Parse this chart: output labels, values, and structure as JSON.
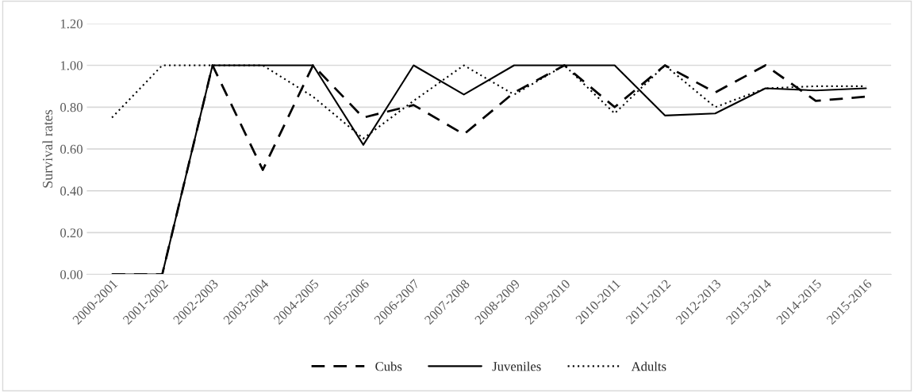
{
  "chart_data": {
    "type": "line",
    "ylabel": "Survival rates",
    "categories": [
      "2000-2001",
      "2001-2002",
      "2002-2003",
      "2003-2004",
      "2004-2005",
      "2005-2006",
      "2006-2007",
      "2007-2008",
      "2008-2009",
      "2009-2010",
      "2010-2011",
      "2011-2012",
      "2012-2013",
      "2013-2014",
      "2014-2015",
      "2015-2016"
    ],
    "series": [
      {
        "name": "Cubs",
        "color": "#000000",
        "line_style": "dashed",
        "values": [
          0,
          0,
          1,
          0.5,
          1,
          0.75,
          0.81,
          0.67,
          0.87,
          1,
          0.8,
          1,
          0.87,
          1,
          0.83,
          0.85
        ]
      },
      {
        "name": "Juveniles",
        "color": "#000000",
        "line_style": "solid",
        "values": [
          0,
          0,
          1,
          1,
          1,
          0.62,
          1,
          0.86,
          1,
          1,
          1,
          0.76,
          0.77,
          0.89,
          0.88,
          0.89
        ]
      },
      {
        "name": "Adults",
        "color": "#000000",
        "line_style": "dotted",
        "values": [
          0.75,
          1,
          1,
          1,
          0.85,
          0.65,
          0.83,
          1,
          0.86,
          1,
          0.77,
          1,
          0.8,
          0.89,
          0.9,
          0.9
        ]
      }
    ],
    "ylim": [
      0,
      1.2
    ],
    "yticks": [
      {
        "value": 0,
        "label": "0.00"
      },
      {
        "value": 0.2,
        "label": "0.20"
      },
      {
        "value": 0.4,
        "label": "0.40"
      },
      {
        "value": 0.6,
        "label": "0.60"
      },
      {
        "value": 0.8,
        "label": "0.80"
      },
      {
        "value": 1,
        "label": "1.00"
      },
      {
        "value": 1.2,
        "label": "1.20"
      }
    ],
    "grid": "y",
    "legend": "bottom"
  }
}
